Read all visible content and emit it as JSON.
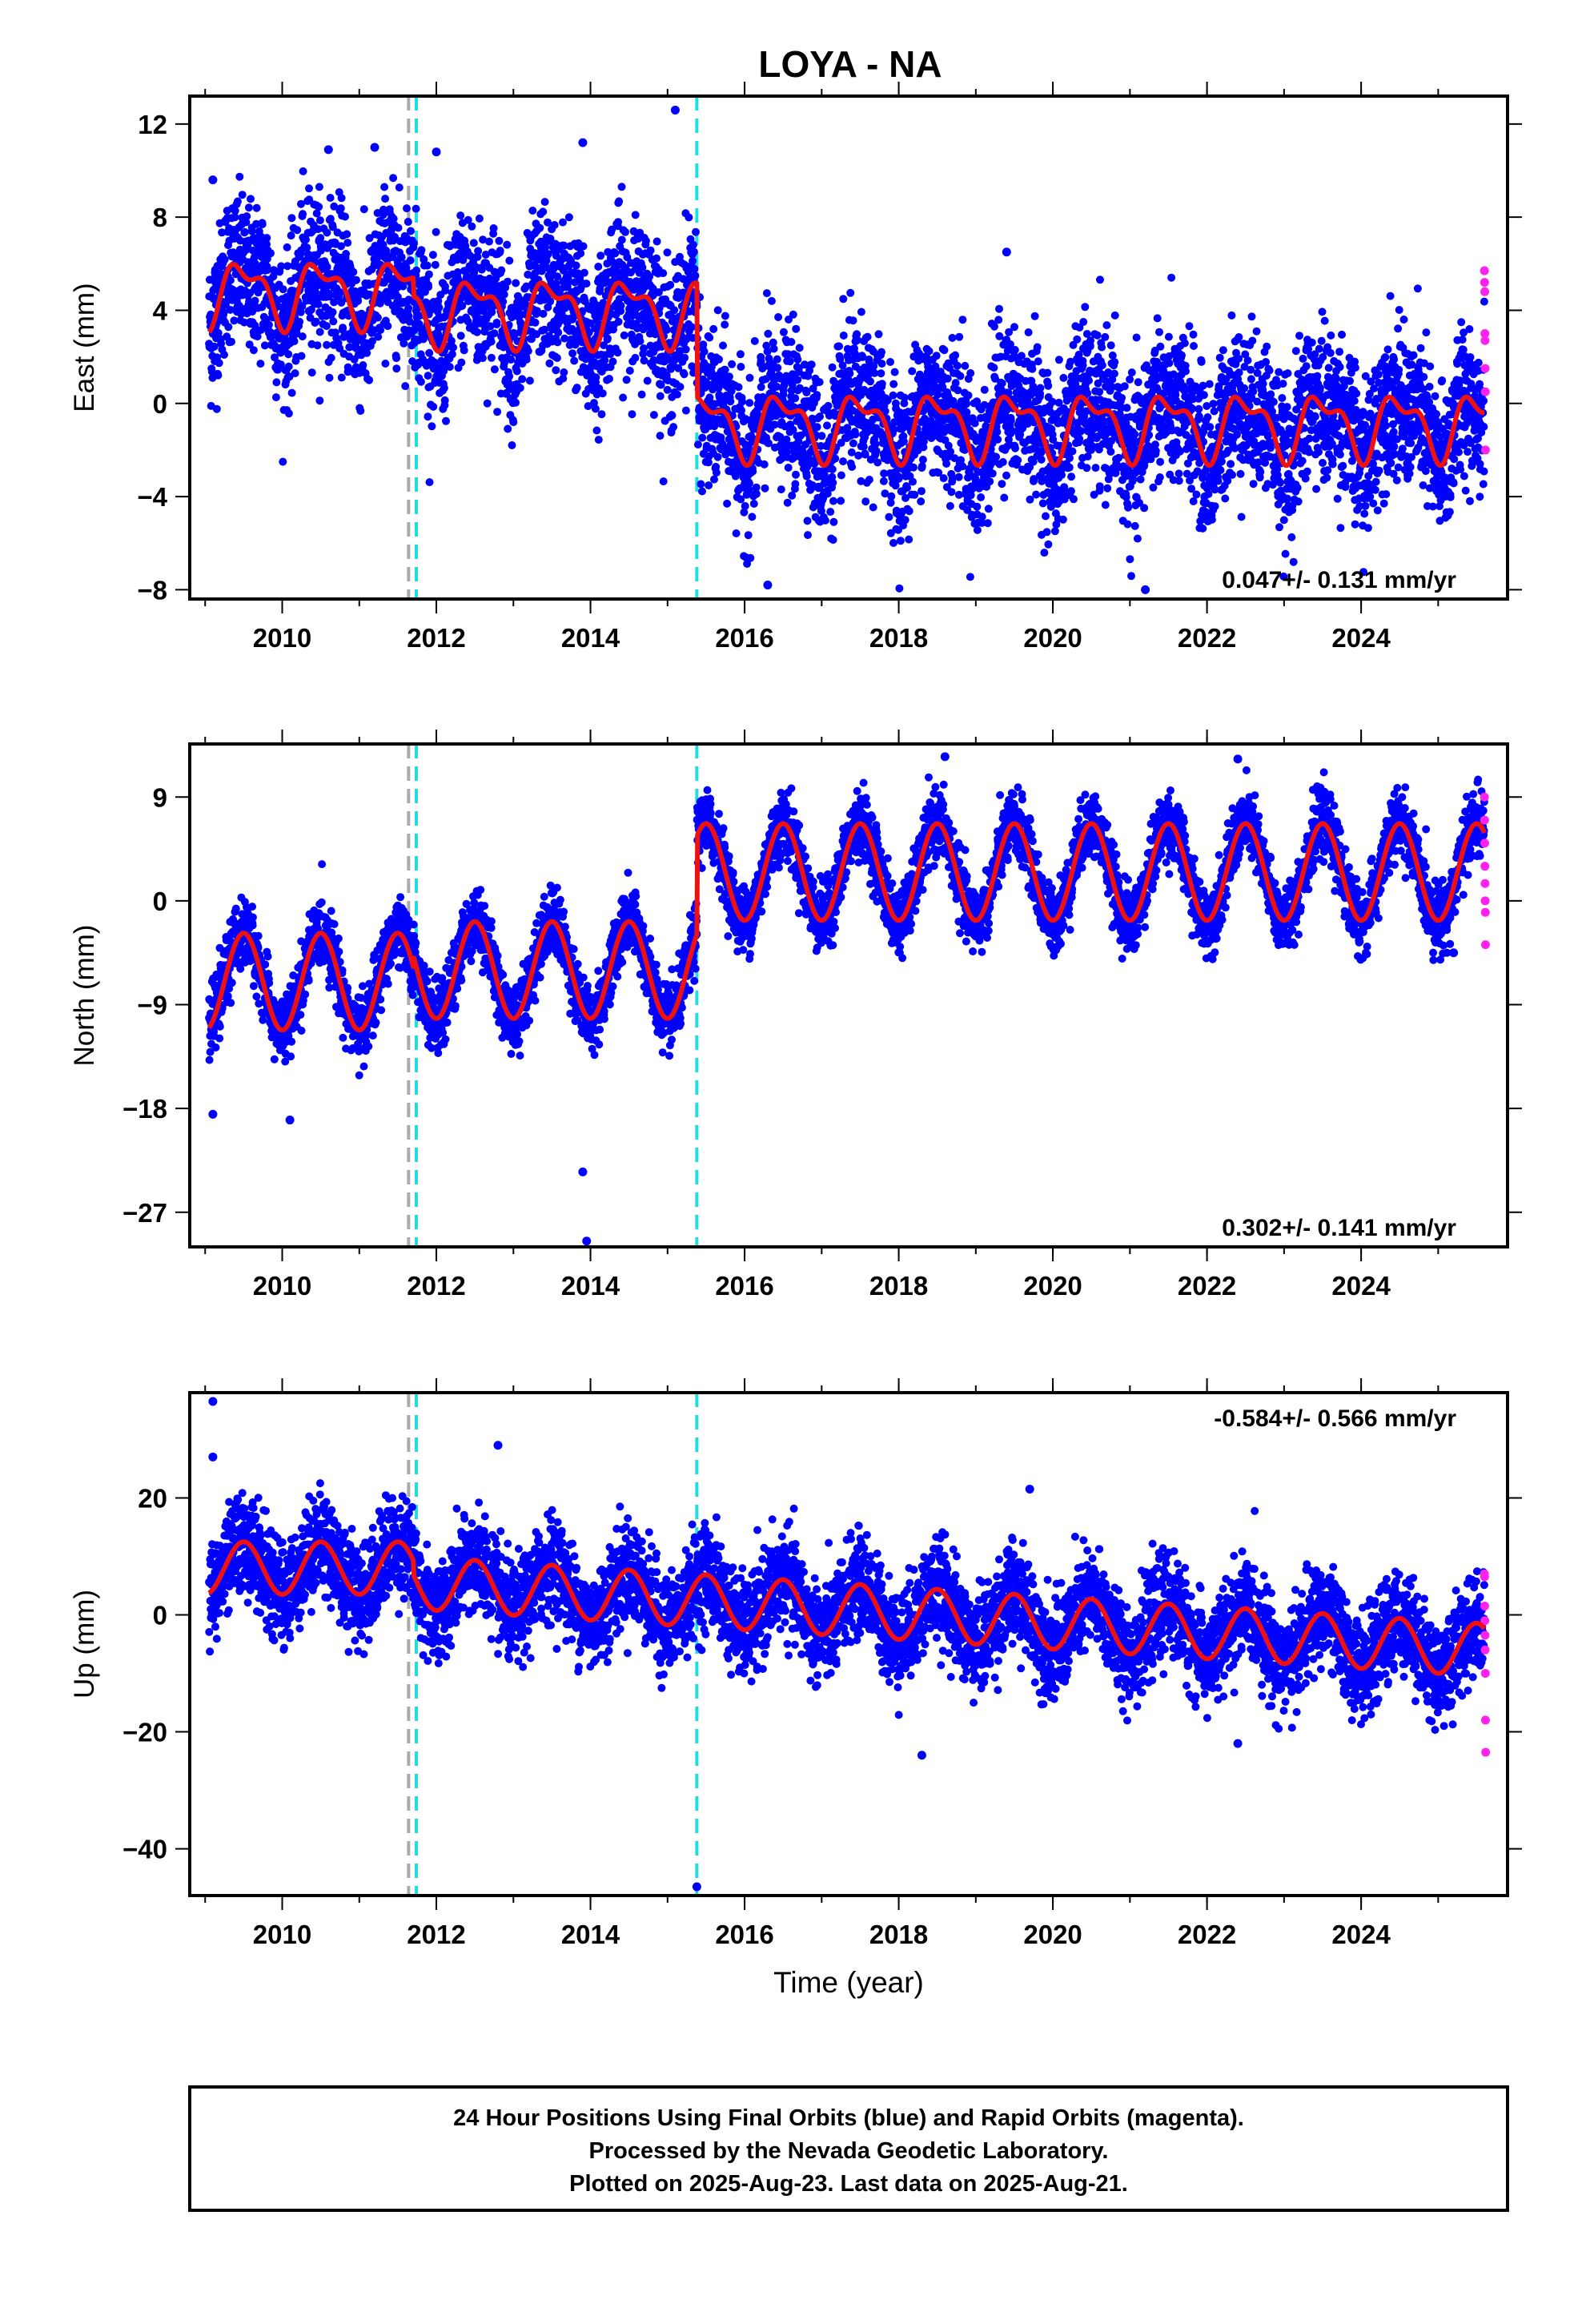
{
  "title": "LOYA - NA",
  "xlabel": "Time (year)",
  "footer": [
    "24 Hour Positions Using Final Orbits (blue) and Rapid Orbits (magenta).",
    "Processed by the Nevada Geodetic Laboratory.",
    "Plotted on 2025-Aug-23. Last data on 2025-Aug-21."
  ],
  "colors": {
    "final_orbits": "#0000ff",
    "rapid_orbits": "#ff22ee",
    "model_fit": "#ee1111",
    "offset_cyan": "#22dddd",
    "offset_gray": "#aaaaaa"
  },
  "chart_data": [
    {
      "type": "scatter",
      "component": "east",
      "ylabel": "East (mm)",
      "xlim": [
        2008.8,
        2025.9
      ],
      "ylim": [
        -8.4,
        13.2
      ],
      "xticks": [
        2010,
        2012,
        2014,
        2016,
        2018,
        2020,
        2022,
        2024
      ],
      "yticks": [
        12,
        8,
        4,
        0,
        -4,
        -8
      ],
      "rate_label": "0.047+/- 0.131 mm/yr",
      "rate_position": "bottom-right",
      "offsets": [
        {
          "year": 2011.64,
          "color": "gray"
        },
        {
          "year": 2011.74,
          "color": "cyan"
        },
        {
          "year": 2015.38,
          "color": "cyan"
        }
      ],
      "model": {
        "pre_2011_7": 4.8,
        "mid": 4.0,
        "post_2015_4": -0.9,
        "annual_amp": 1.2,
        "semiannual_amp": 0.6,
        "scatter_sd": 1.6
      },
      "outliers": [
        [
          2009.1,
          9.6
        ],
        [
          2010.6,
          10.9
        ],
        [
          2011.2,
          11.0
        ],
        [
          2012.0,
          10.8
        ],
        [
          2013.9,
          11.2
        ],
        [
          2015.1,
          12.6
        ],
        [
          2016.3,
          -7.8
        ],
        [
          2019.4,
          6.5
        ],
        [
          2021.2,
          -8.0
        ]
      ],
      "rapid_y": [
        5.7,
        5.2,
        4.8,
        3.0,
        2.7,
        1.5,
        0.5,
        -2.0
      ]
    },
    {
      "type": "scatter",
      "component": "north",
      "ylabel": "North (mm)",
      "xlim": [
        2008.8,
        2025.9
      ],
      "ylim": [
        -30.0,
        13.6
      ],
      "xticks": [
        2010,
        2012,
        2014,
        2016,
        2018,
        2020,
        2022,
        2024
      ],
      "yticks": [
        9,
        0,
        -9,
        -18,
        -27
      ],
      "rate_label": "0.302+/- 0.141 mm/yr",
      "rate_position": "bottom-right",
      "offsets": [
        {
          "year": 2011.64,
          "color": "gray"
        },
        {
          "year": 2011.74,
          "color": "cyan"
        },
        {
          "year": 2015.38,
          "color": "cyan"
        }
      ],
      "model": {
        "pre_2011_7": -7.0,
        "mid": -6.0,
        "post_2015_4": 2.5,
        "annual_amp": 4.2,
        "semiannual_amp": 0.0,
        "scatter_sd": 1.4
      },
      "outliers": [
        [
          2009.1,
          -18.5
        ],
        [
          2010.1,
          -19.0
        ],
        [
          2013.9,
          -23.5
        ],
        [
          2013.95,
          -29.5
        ],
        [
          2018.6,
          12.5
        ],
        [
          2022.4,
          12.3
        ],
        [
          2025.2,
          -4.5
        ]
      ],
      "rapid_y": [
        9.0,
        7.0,
        5.0,
        3.0,
        1.5,
        0.0,
        -1.0,
        -3.8
      ]
    },
    {
      "type": "scatter",
      "component": "up",
      "ylabel": "Up (mm)",
      "xlim": [
        2008.8,
        2025.9
      ],
      "ylim": [
        -48.0,
        38.0
      ],
      "xticks": [
        2010,
        2012,
        2014,
        2016,
        2018,
        2020,
        2022,
        2024
      ],
      "yticks": [
        20,
        0,
        -20,
        -40
      ],
      "rate_label": "-0.584+/- 0.566 mm/yr",
      "rate_position": "top-right",
      "offsets": [
        {
          "year": 2011.64,
          "color": "gray"
        },
        {
          "year": 2011.74,
          "color": "cyan"
        },
        {
          "year": 2015.38,
          "color": "cyan"
        }
      ],
      "model": {
        "pre_2011_7": 8.0,
        "trend_start": 5.5,
        "trend_end": -6.0,
        "annual_amp": 4.5,
        "semiannual_amp": 0.0,
        "scatter_sd": 4.2
      },
      "outliers": [
        [
          2009.1,
          36.5
        ],
        [
          2009.1,
          27.0
        ],
        [
          2012.8,
          29.0
        ],
        [
          2015.38,
          -46.5
        ],
        [
          2018.3,
          -24.0
        ],
        [
          2019.7,
          21.5
        ],
        [
          2022.4,
          -22.0
        ]
      ],
      "rapid_y": [
        7.0,
        6.5,
        1.5,
        -1.0,
        -3.5,
        -6.0,
        -10.0,
        -18.0,
        -23.5
      ]
    }
  ]
}
